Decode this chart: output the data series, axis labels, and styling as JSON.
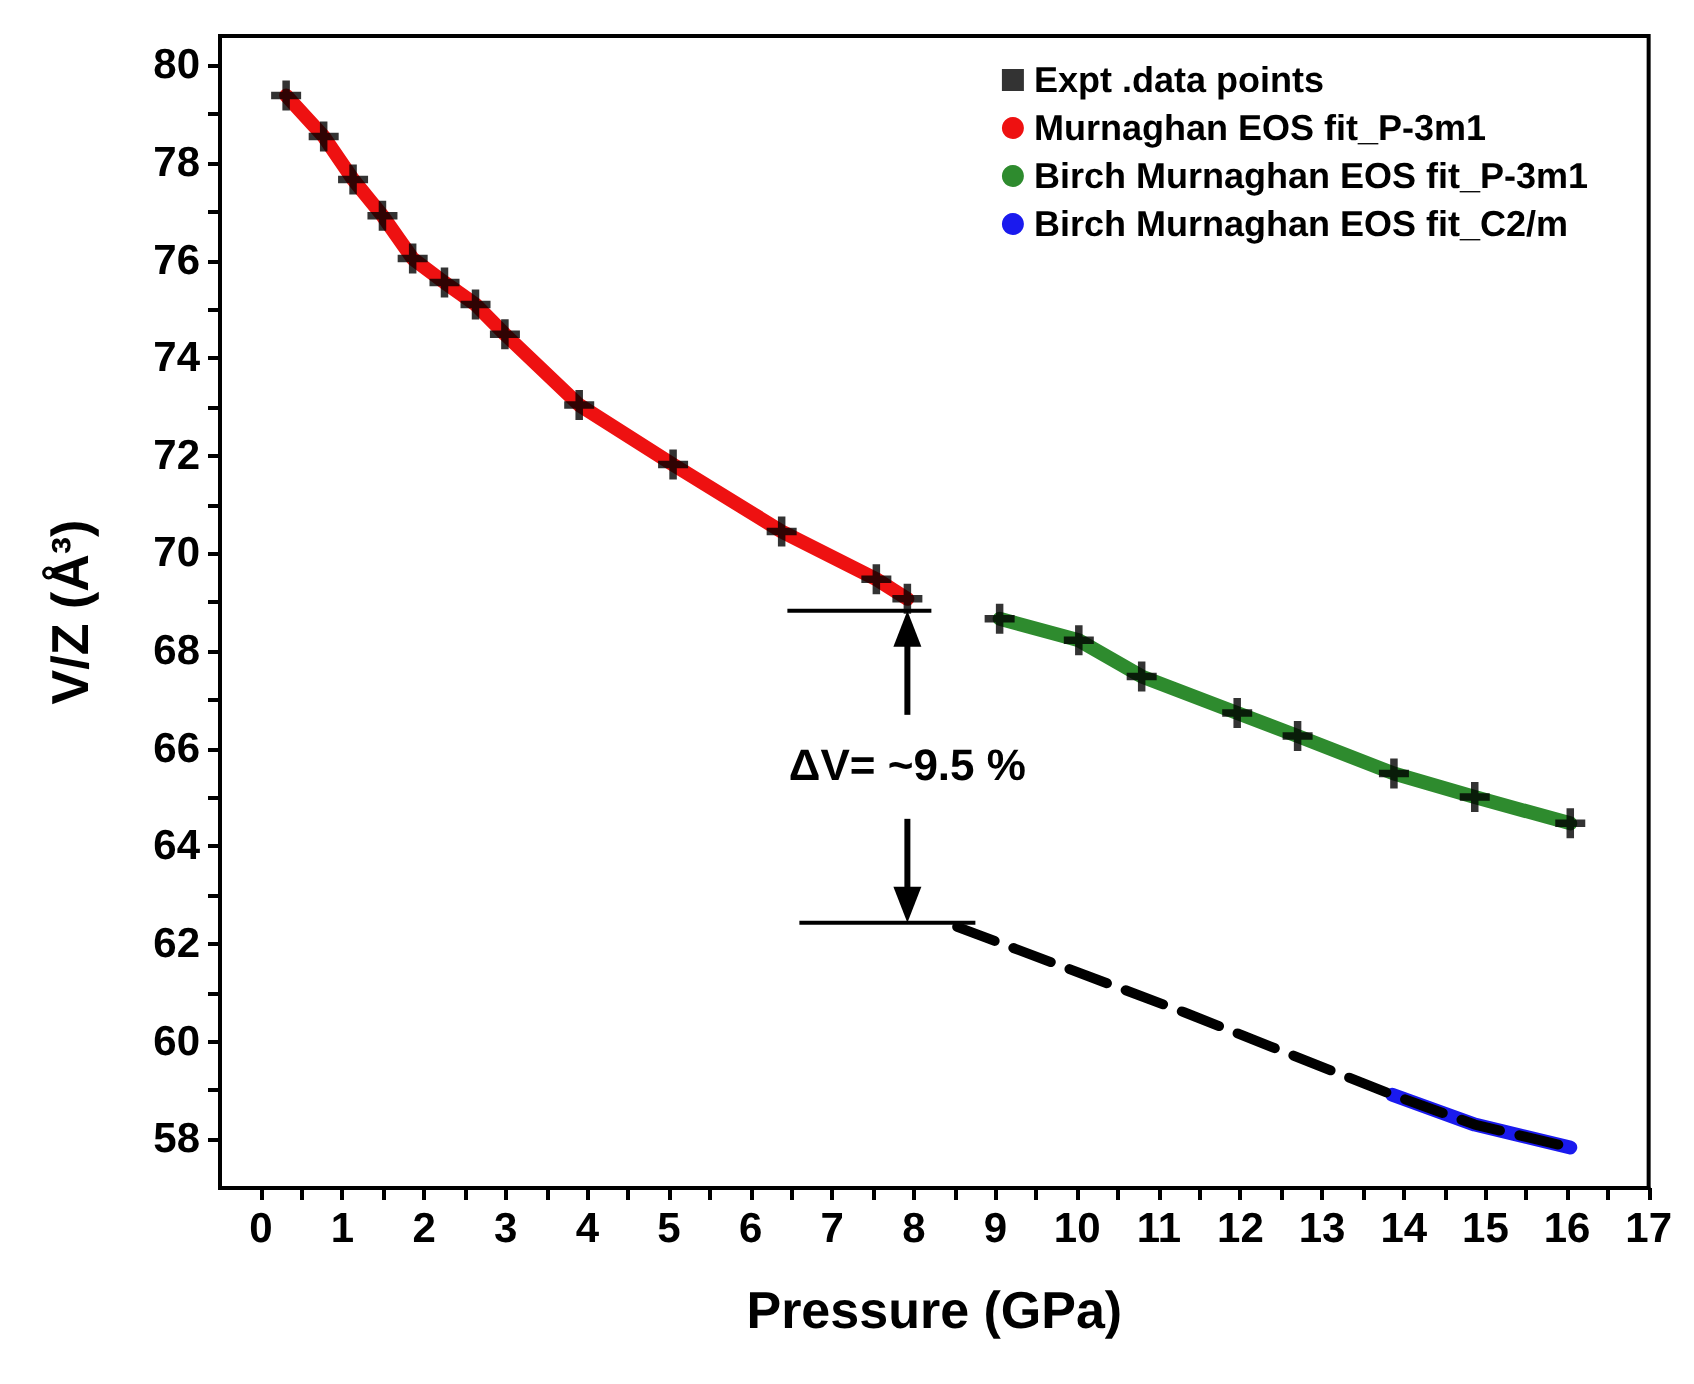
{
  "chart_data": {
    "type": "scatter",
    "xlabel": "Pressure (GPa)",
    "ylabel": "V/Z (Å³)",
    "xlim": [
      -0.5,
      17
    ],
    "ylim": [
      57,
      80.6
    ],
    "xticks": [
      0,
      {
        "value": 0.5,
        "label": null
      },
      1,
      {
        "value": 1.5,
        "label": null
      },
      2,
      {
        "value": 2.5,
        "label": null
      },
      3,
      {
        "value": 3.5,
        "label": null
      },
      4,
      {
        "value": 4.5,
        "label": null
      },
      5,
      {
        "value": 5.5,
        "label": null
      },
      6,
      {
        "value": 6.5,
        "label": null
      },
      7,
      {
        "value": 7.5,
        "label": null
      },
      8,
      {
        "value": 8.5,
        "label": null
      },
      9,
      {
        "value": 9.5,
        "label": null
      },
      10,
      {
        "value": 10.5,
        "label": null
      },
      11,
      {
        "value": 11.5,
        "label": null
      },
      12,
      {
        "value": 12.5,
        "label": null
      },
      13,
      {
        "value": 13.5,
        "label": null
      },
      14,
      {
        "value": 14.5,
        "label": null
      },
      15,
      {
        "value": 15.5,
        "label": null
      },
      16,
      {
        "value": 16.5,
        "label": null
      },
      17
    ],
    "yticks": [
      58,
      {
        "value": 59,
        "label": null
      },
      60,
      {
        "value": 61,
        "label": null
      },
      62,
      {
        "value": 63,
        "label": null
      },
      64,
      {
        "value": 65,
        "label": null
      },
      66,
      {
        "value": 67,
        "label": null
      },
      68,
      {
        "value": 69,
        "label": null
      },
      70,
      {
        "value": 71,
        "label": null
      },
      72,
      {
        "value": 73,
        "label": null
      },
      74,
      {
        "value": 75,
        "label": null
      },
      76,
      {
        "value": 77,
        "label": null
      },
      78,
      {
        "value": 79,
        "label": null
      },
      80
    ],
    "grid": false,
    "legend": "top right",
    "series": [
      {
        "name": "Murnaghan EOS fit_P-3m1",
        "type": "line",
        "marker": "none",
        "color": "#ee1111",
        "x": [
          0.31,
          0.77,
          1.13,
          1.49,
          1.86,
          2.25,
          2.63,
          2.99,
          3.9,
          5.05,
          6.38,
          7.54,
          7.92
        ],
        "values": [
          79.38,
          78.54,
          77.66,
          76.92,
          76.04,
          75.55,
          75.1,
          74.49,
          73.04,
          71.82,
          70.45,
          69.47,
          69.07
        ]
      },
      {
        "name": "Birch Murnaghan EOS fit_P-3m1",
        "type": "line",
        "marker": "none",
        "color": "#2e8b2e",
        "x": [
          9.05,
          10.02,
          10.79,
          11.96,
          12.7,
          13.88,
          14.87,
          16.04
        ],
        "values": [
          68.66,
          68.22,
          67.48,
          66.73,
          66.26,
          65.49,
          65.01,
          64.47
        ]
      },
      {
        "name": "Birch Murnaghan EOS fit_C2/m",
        "type": "line",
        "marker": "none",
        "color": "#1a1aee",
        "x": [
          13.86,
          14.87,
          16.04
        ],
        "values": [
          58.91,
          58.3,
          57.83
        ]
      },
      {
        "type": "line",
        "marker": "none",
        "line_style": "dashed",
        "color": "#000000",
        "x": [
          8.53,
          11.31,
          13.86,
          14.87,
          16.04
        ],
        "values": [
          62.35,
          60.6,
          58.91,
          58.3,
          57.83
        ]
      },
      {
        "name": "Expt .data points",
        "type": "scatter",
        "marker": "cross",
        "color": "#000000",
        "x": [
          0.31,
          0.77,
          1.13,
          1.49,
          1.86,
          2.25,
          2.63,
          2.99,
          3.9,
          5.05,
          6.38,
          7.54,
          7.92,
          9.05,
          10.02,
          10.79,
          11.96,
          12.7,
          13.88,
          14.87,
          16.04
        ],
        "values": [
          79.38,
          78.54,
          77.66,
          76.92,
          76.04,
          75.55,
          75.1,
          74.49,
          73.04,
          71.82,
          70.45,
          69.47,
          69.07,
          68.66,
          68.22,
          67.48,
          66.73,
          66.26,
          65.49,
          65.01,
          64.47
        ]
      }
    ],
    "annotations": [
      "ΔV= ~9.5 %"
    ]
  }
}
